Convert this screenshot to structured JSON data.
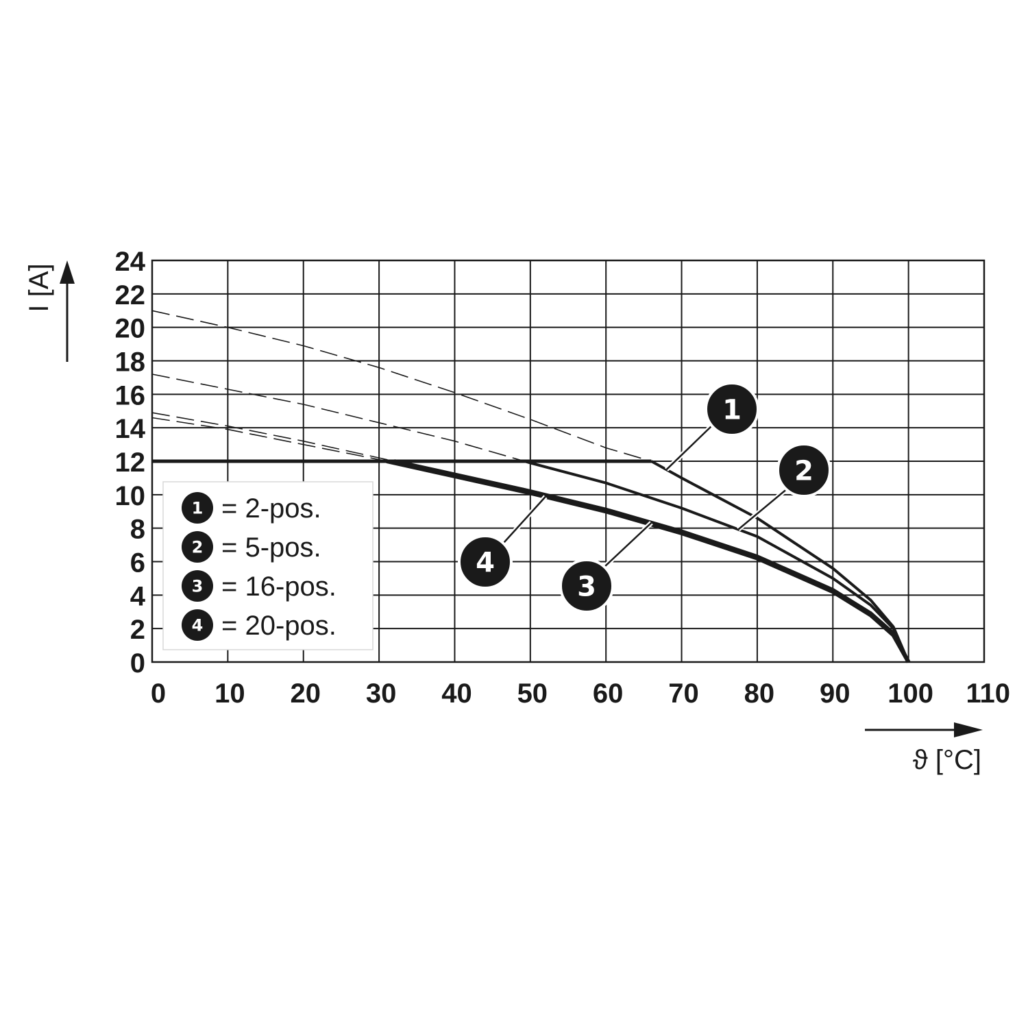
{
  "chart_data": {
    "type": "line",
    "xlabel": "ϑ [°C]",
    "ylabel": "I [A]",
    "xlim": [
      0,
      110
    ],
    "ylim": [
      0,
      24
    ],
    "xticks": [
      "0",
      "10",
      "20",
      "30",
      "40",
      "50",
      "60",
      "70",
      "80",
      "90",
      "100",
      "110"
    ],
    "yticks": [
      "0",
      "2",
      "4",
      "6",
      "8",
      "10",
      "12",
      "14",
      "16",
      "18",
      "20",
      "22",
      "24"
    ],
    "grid": true,
    "limit_line": {
      "value": 12
    },
    "series": [
      {
        "name": "2-pos.",
        "badge": "1",
        "x": [
          0,
          10,
          20,
          30,
          40,
          50,
          60,
          66,
          70,
          80,
          90,
          95,
          98,
          100
        ],
        "y": [
          21.0,
          20.0,
          18.9,
          17.6,
          16.1,
          14.5,
          12.8,
          12.0,
          11.0,
          8.6,
          5.6,
          3.7,
          2.1,
          0
        ],
        "limited_max": 12
      },
      {
        "name": "5-pos.",
        "badge": "2",
        "x": [
          0,
          10,
          20,
          30,
          40,
          50,
          60,
          70,
          80,
          90,
          95,
          98,
          100
        ],
        "y": [
          17.2,
          16.3,
          15.4,
          14.3,
          13.2,
          11.9,
          10.7,
          9.2,
          7.5,
          5.0,
          3.4,
          2.0,
          0
        ],
        "limited_max": 12
      },
      {
        "name": "16-pos.",
        "badge": "3",
        "x": [
          0,
          10,
          20,
          30,
          40,
          50,
          60,
          70,
          80,
          90,
          95,
          98,
          100
        ],
        "y": [
          14.9,
          14.1,
          13.2,
          12.2,
          11.2,
          10.2,
          9.1,
          7.8,
          6.3,
          4.3,
          2.9,
          1.7,
          0
        ],
        "limited_max": 12
      },
      {
        "name": "20-pos.",
        "badge": "4",
        "x": [
          0,
          10,
          20,
          30,
          40,
          50,
          60,
          70,
          80,
          90,
          95,
          98,
          100
        ],
        "y": [
          14.6,
          13.9,
          13.0,
          12.1,
          11.1,
          10.1,
          9.0,
          7.7,
          6.2,
          4.2,
          2.8,
          1.6,
          0
        ],
        "limited_max": 12
      }
    ],
    "legend": {
      "position": "bottom-left",
      "entries": [
        {
          "badge": "1",
          "text": "= 2-pos."
        },
        {
          "badge": "2",
          "text": "= 5-pos."
        },
        {
          "badge": "3",
          "text": "= 16-pos."
        },
        {
          "badge": "4",
          "text": "= 20-pos."
        }
      ]
    },
    "callouts": [
      {
        "badge": "1",
        "series": 0,
        "at_x": 68
      },
      {
        "badge": "2",
        "series": 1,
        "at_x": 77.5
      },
      {
        "badge": "3",
        "series": 2,
        "at_x": 66
      },
      {
        "badge": "4",
        "series": 3,
        "at_x": 52
      }
    ],
    "colors": {
      "line": "#1a1a1a",
      "grid": "#1a1a1a",
      "badge": "#1a1a1a",
      "background": "#ffffff"
    }
  }
}
